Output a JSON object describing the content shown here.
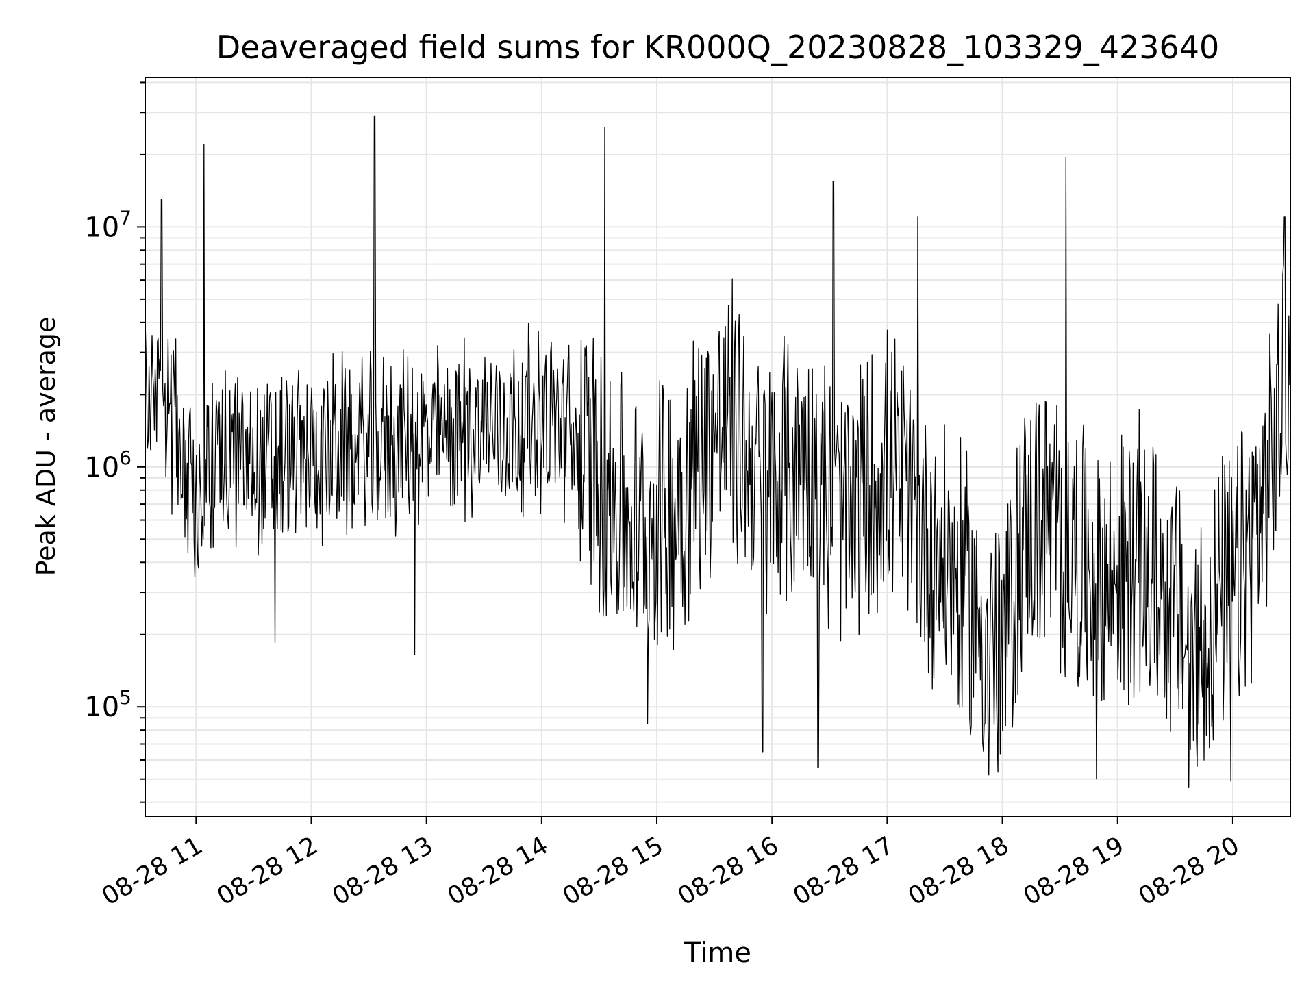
{
  "chart_data": {
    "type": "line",
    "title": "Deaveraged field sums for KR000Q_20230828_103329_423640",
    "xlabel": "Time",
    "ylabel": "Peak ADU - average",
    "yscale": "log",
    "ylim": [
      35000,
      42000000
    ],
    "xlim": [
      "2023-08-28 10:33:29",
      "2023-08-28 20:30:00"
    ],
    "grid": true,
    "line_color": "#000000",
    "grid_color": "#e6e6e6",
    "x_ticks": [
      {
        "time": "2023-08-28 11:00",
        "label": "08-28 11"
      },
      {
        "time": "2023-08-28 12:00",
        "label": "08-28 12"
      },
      {
        "time": "2023-08-28 13:00",
        "label": "08-28 13"
      },
      {
        "time": "2023-08-28 14:00",
        "label": "08-28 14"
      },
      {
        "time": "2023-08-28 15:00",
        "label": "08-28 15"
      },
      {
        "time": "2023-08-28 16:00",
        "label": "08-28 16"
      },
      {
        "time": "2023-08-28 17:00",
        "label": "08-28 17"
      },
      {
        "time": "2023-08-28 18:00",
        "label": "08-28 18"
      },
      {
        "time": "2023-08-28 19:00",
        "label": "08-28 19"
      },
      {
        "time": "2023-08-28 20:00",
        "label": "08-28 20"
      }
    ],
    "y_ticks": [
      {
        "value": 100000,
        "base": "10",
        "exp": "5"
      },
      {
        "value": 1000000,
        "base": "10",
        "exp": "6"
      },
      {
        "value": 10000000,
        "base": "10",
        "exp": "7"
      }
    ],
    "series": [
      {
        "points": [
          [
            "2023-08-28 10:34",
            2500000
          ],
          [
            "2023-08-28 10:38",
            2200000
          ],
          [
            "2023-08-28 10:42",
            1800000
          ],
          [
            "2023-08-28 10:47",
            1500000
          ],
          [
            "2023-08-28 10:52",
            1200000
          ],
          [
            "2023-08-28 10:57",
            900000
          ],
          [
            "2023-08-28 11:02",
            800000
          ],
          [
            "2023-08-28 11:10",
            1000000
          ],
          [
            "2023-08-28 11:20",
            1100000
          ],
          [
            "2023-08-28 11:30",
            1050000
          ],
          [
            "2023-08-28 11:40",
            1000000
          ],
          [
            "2023-08-28 11:50",
            1100000
          ],
          [
            "2023-08-28 12:00",
            1100000
          ],
          [
            "2023-08-28 12:15",
            1200000
          ],
          [
            "2023-08-28 12:30",
            1200000
          ],
          [
            "2023-08-28 12:45",
            1250000
          ],
          [
            "2023-08-28 13:00",
            1300000
          ],
          [
            "2023-08-28 13:15",
            1400000
          ],
          [
            "2023-08-28 13:30",
            1500000
          ],
          [
            "2023-08-28 13:45",
            1500000
          ],
          [
            "2023-08-28 14:00",
            1600000
          ],
          [
            "2023-08-28 14:10",
            1500000
          ],
          [
            "2023-08-28 14:20",
            1200000
          ],
          [
            "2023-08-28 14:30",
            900000
          ],
          [
            "2023-08-28 14:40",
            700000
          ],
          [
            "2023-08-28 14:50",
            500000
          ],
          [
            "2023-08-28 15:00",
            600000
          ],
          [
            "2023-08-28 15:10",
            700000
          ],
          [
            "2023-08-28 15:20",
            1000000
          ],
          [
            "2023-08-28 15:30",
            1500000
          ],
          [
            "2023-08-28 15:40",
            1500000
          ],
          [
            "2023-08-28 15:50",
            1000000
          ],
          [
            "2023-08-28 16:00",
            800000
          ],
          [
            "2023-08-28 16:10",
            1000000
          ],
          [
            "2023-08-28 16:20",
            1100000
          ],
          [
            "2023-08-28 16:30",
            700000
          ],
          [
            "2023-08-28 16:40",
            600000
          ],
          [
            "2023-08-28 16:50",
            800000
          ],
          [
            "2023-08-28 17:00",
            1000000
          ],
          [
            "2023-08-28 17:10",
            700000
          ],
          [
            "2023-08-28 17:20",
            500000
          ],
          [
            "2023-08-28 17:30",
            400000
          ],
          [
            "2023-08-28 17:40",
            300000
          ],
          [
            "2023-08-28 17:50",
            200000
          ],
          [
            "2023-08-28 18:00",
            150000
          ],
          [
            "2023-08-28 18:10",
            500000
          ],
          [
            "2023-08-28 18:20",
            600000
          ],
          [
            "2023-08-28 18:30",
            500000
          ],
          [
            "2023-08-28 18:40",
            400000
          ],
          [
            "2023-08-28 18:50",
            300000
          ],
          [
            "2023-08-28 19:00",
            350000
          ],
          [
            "2023-08-28 19:10",
            400000
          ],
          [
            "2023-08-28 19:20",
            350000
          ],
          [
            "2023-08-28 19:30",
            250000
          ],
          [
            "2023-08-28 19:40",
            150000
          ],
          [
            "2023-08-28 19:50",
            250000
          ],
          [
            "2023-08-28 20:00",
            300000
          ],
          [
            "2023-08-28 20:10",
            500000
          ],
          [
            "2023-08-28 20:20",
            900000
          ],
          [
            "2023-08-28 20:27",
            2500000
          ],
          [
            "2023-08-28 20:30",
            2000000
          ]
        ],
        "spikes": [
          [
            "2023-08-28 10:42",
            13000000
          ],
          [
            "2023-08-28 11:04",
            22000000
          ],
          [
            "2023-08-28 12:33",
            29000000
          ],
          [
            "2023-08-28 14:33",
            26000000
          ],
          [
            "2023-08-28 16:32",
            15500000
          ],
          [
            "2023-08-28 17:16",
            11000000
          ],
          [
            "2023-08-28 18:33",
            19500000
          ],
          [
            "2023-08-28 20:27",
            11000000
          ]
        ],
        "dips": [
          [
            "2023-08-28 11:41",
            185000
          ],
          [
            "2023-08-28 12:54",
            165000
          ],
          [
            "2023-08-28 14:55",
            85000
          ],
          [
            "2023-08-28 15:55",
            65000
          ],
          [
            "2023-08-28 16:24",
            56000
          ],
          [
            "2023-08-28 17:53",
            52000
          ],
          [
            "2023-08-28 18:49",
            50000
          ],
          [
            "2023-08-28 19:37",
            46000
          ],
          [
            "2023-08-28 19:59",
            49000
          ]
        ]
      }
    ]
  }
}
